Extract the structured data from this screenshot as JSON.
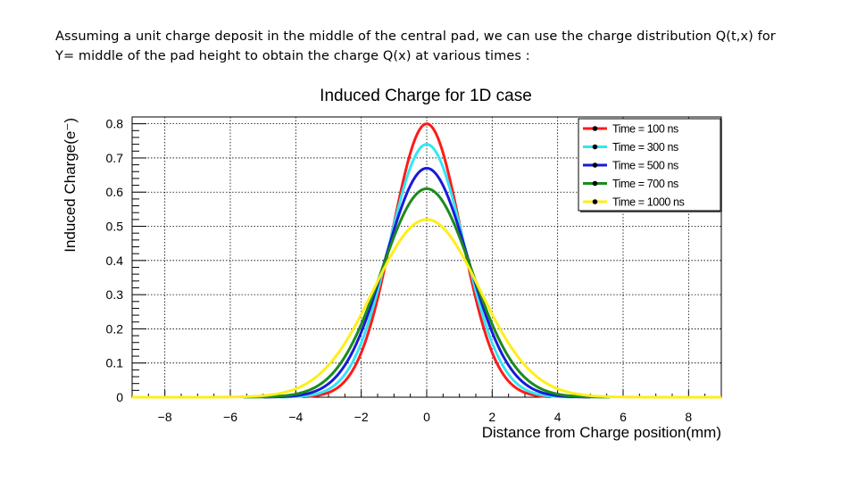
{
  "caption": {
    "line1": "Assuming a unit charge deposit in the middle of the central pad, we can use the charge distribution Q(t,x) for",
    "line2": "Y= middle of the pad height  to obtain the charge Q(x) at various times :"
  },
  "chart_data": {
    "type": "line",
    "title": "Induced Charge for 1D case",
    "xlabel": "Distance from Charge position(mm)",
    "ylabel": "Induced Charge(e⁻)",
    "xlim": [
      -9,
      9
    ],
    "ylim": [
      0,
      0.82
    ],
    "xticks": [
      -8,
      -6,
      -4,
      -2,
      0,
      2,
      4,
      6,
      8
    ],
    "yticks": [
      0,
      0.1,
      0.2,
      0.3,
      0.4,
      0.5,
      0.6,
      0.7,
      0.8
    ],
    "ytick_labels": [
      "0",
      "0.1",
      "0.2",
      "0.3",
      "0.4",
      "0.5",
      "0.6",
      "0.7",
      "0.8"
    ],
    "grid": true,
    "legend_position": "top-right",
    "series": [
      {
        "name": "Time = 100 ns",
        "color": "#ff1a1a",
        "peak": 0.8,
        "sigma": 1.05,
        "x_range": [
          -3.8,
          3.8
        ]
      },
      {
        "name": "Time = 300 ns",
        "color": "#33e6f2",
        "peak": 0.74,
        "sigma": 1.14,
        "x_range": [
          -4.5,
          4.5
        ]
      },
      {
        "name": "Time = 500 ns",
        "color": "#1a1ad9",
        "peak": 0.67,
        "sigma": 1.26,
        "x_range": [
          -5.0,
          5.0
        ]
      },
      {
        "name": "Time = 700 ns",
        "color": "#1a8c1a",
        "peak": 0.61,
        "sigma": 1.38,
        "x_range": [
          -5.6,
          5.6
        ]
      },
      {
        "name": "Time = 1000 ns",
        "color": "#ffee1a",
        "peak": 0.52,
        "sigma": 1.62,
        "x_range": [
          -9.0,
          9.0
        ]
      }
    ]
  }
}
